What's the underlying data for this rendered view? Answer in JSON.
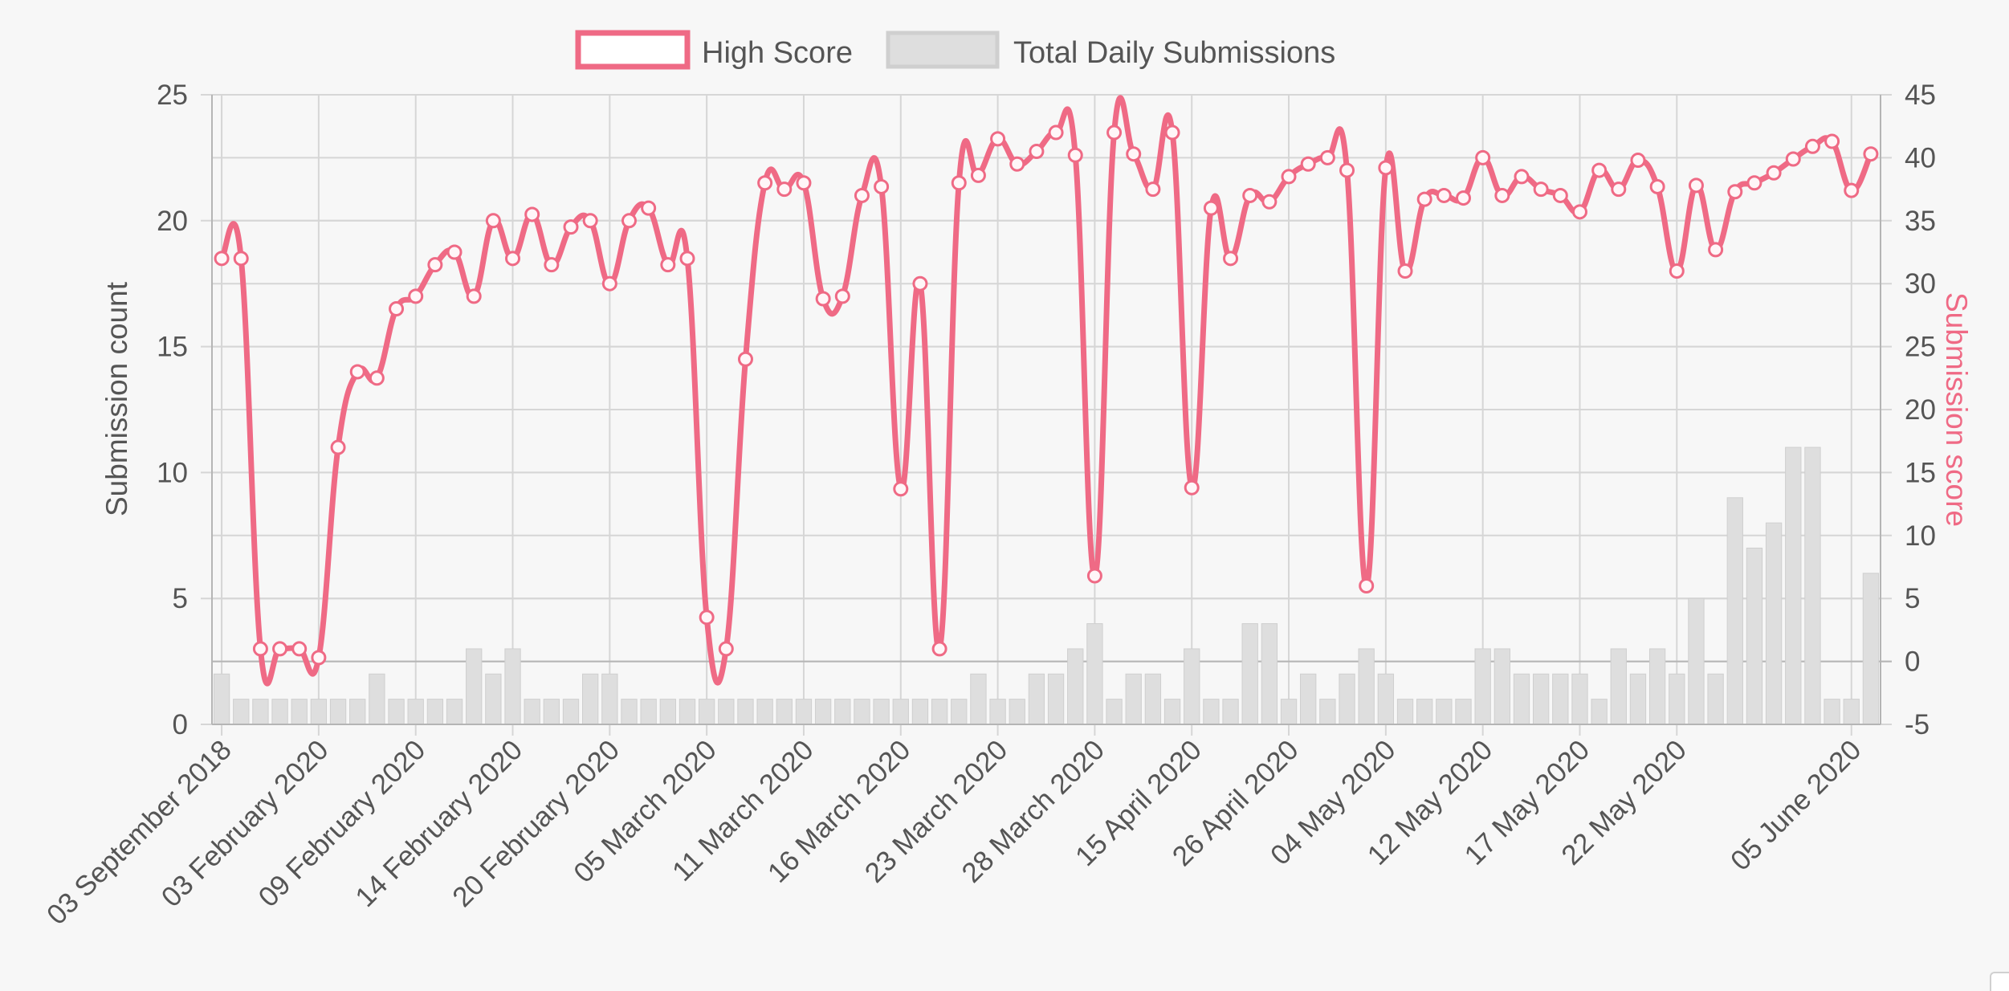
{
  "chart_data": {
    "type": "bar+line",
    "legend": {
      "placement": "top-center",
      "items": [
        {
          "label": "High Score",
          "style": "line"
        },
        {
          "label": "Total Daily Submissions",
          "style": "bar"
        }
      ]
    },
    "y_left": {
      "label": "Submission count",
      "min": 0,
      "max": 25,
      "ticks": [
        0,
        5,
        10,
        15,
        20,
        25
      ]
    },
    "y_right": {
      "label": "Submission score",
      "min": -5,
      "max": 45,
      "ticks": [
        -5,
        0,
        5,
        10,
        15,
        20,
        25,
        30,
        35,
        40,
        45
      ]
    },
    "x_tick_labels": [
      "03 September 2018",
      "03 February 2020",
      "09 February 2020",
      "14 February 2020",
      "20 February 2020",
      "05 March 2020",
      "11 March 2020",
      "16 March 2020",
      "23 March 2020",
      "28 March 2020",
      "15 April 2020",
      "26 April 2020",
      "04 May 2020",
      "12 May 2020",
      "17 May 2020",
      "22 May 2020",
      "05 June 2020"
    ],
    "grid": true,
    "series": [
      {
        "name": "Total Daily Submissions",
        "type": "bar",
        "axis": "left",
        "values": [
          2,
          1,
          1,
          1,
          1,
          1,
          1,
          1,
          2,
          1,
          1,
          1,
          1,
          3,
          2,
          3,
          1,
          1,
          1,
          2,
          2,
          1,
          1,
          1,
          1,
          1,
          1,
          1,
          1,
          1,
          1,
          1,
          1,
          1,
          1,
          1,
          1,
          1,
          1,
          2,
          1,
          1,
          2,
          2,
          3,
          4,
          1,
          2,
          2,
          1,
          3,
          1,
          1,
          4,
          4,
          1,
          2,
          1,
          2,
          3,
          2,
          1,
          1,
          1,
          1,
          3,
          3,
          2,
          2,
          2,
          2,
          1,
          3,
          2,
          3,
          2,
          5,
          2,
          9,
          7,
          8,
          11,
          11,
          1,
          1,
          6
        ]
      },
      {
        "name": "High Score",
        "type": "line",
        "axis": "right",
        "values": [
          32,
          32,
          1,
          1,
          1,
          0.3,
          17,
          23,
          22.5,
          28,
          29,
          31.5,
          32.5,
          29,
          35,
          32,
          35.5,
          31.5,
          34.5,
          35,
          30,
          35,
          36,
          31.5,
          32,
          3.5,
          1,
          24,
          38,
          37.5,
          38,
          28.8,
          29,
          37,
          37.7,
          13.7,
          30,
          1,
          38,
          38.6,
          41.5,
          39.5,
          40.5,
          42,
          40.2,
          6.8,
          42,
          40.3,
          37.5,
          42,
          13.8,
          36,
          32,
          37,
          36.5,
          38.5,
          39.5,
          40,
          39,
          6,
          39.2,
          31,
          36.7,
          37,
          36.8,
          40,
          37,
          38.5,
          37.5,
          37,
          35.7,
          39,
          37.5,
          39.8,
          37.7,
          31,
          37.8,
          32.7,
          37.3,
          38,
          38.8,
          39.9,
          40.9,
          41.3,
          37.4,
          40.3
        ]
      }
    ]
  },
  "style": {
    "line_color": "#ef6a85",
    "bar_fill": "#dedede",
    "bar_stroke": "#cfcfcf",
    "grid_color": "#d6d6d6",
    "tick_color": "#555555",
    "right_axis_color": "#ef6a85",
    "background": "#f7f7f7"
  }
}
